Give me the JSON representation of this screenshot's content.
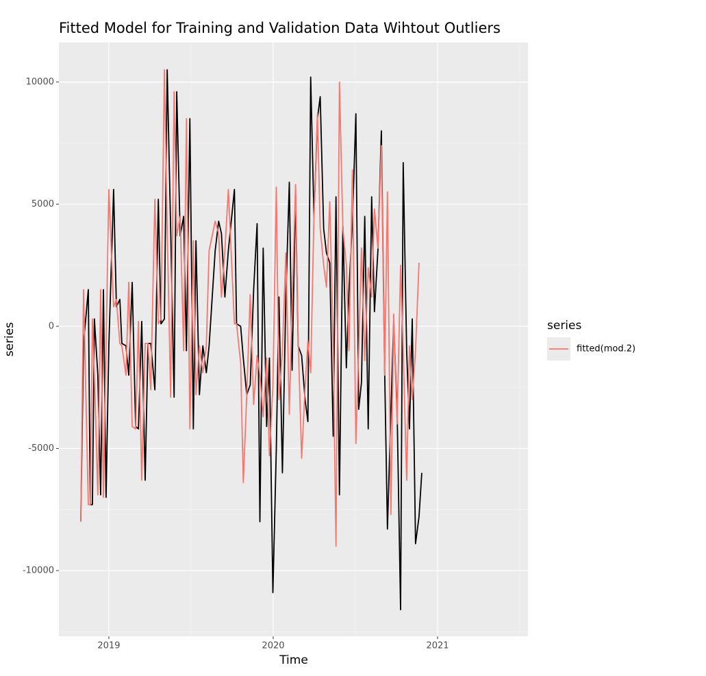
{
  "chart_data": {
    "type": "line",
    "title": "Fitted Model for Training and Validation Data Wihtout Outliers",
    "x_label": "Time",
    "y_label": "series",
    "legend_title": "series",
    "legend_position": "right",
    "grid": true,
    "x": [
      2018.829,
      2018.846,
      2018.875,
      2018.887,
      2018.9,
      2018.912,
      2018.933,
      2018.95,
      2018.967,
      2018.983,
      2019.0,
      2019.029,
      2019.046,
      2019.067,
      2019.079,
      2019.104,
      2019.121,
      2019.142,
      2019.163,
      2019.18,
      2019.2,
      2019.221,
      2019.238,
      2019.255,
      2019.28,
      2019.301,
      2019.317,
      2019.338,
      2019.355,
      2019.376,
      2019.397,
      2019.413,
      2019.434,
      2019.455,
      2019.472,
      2019.493,
      2019.514,
      2019.53,
      2019.551,
      2019.572,
      2019.593,
      2019.61,
      2019.647,
      2019.668,
      2019.685,
      2019.706,
      2019.727,
      2019.764,
      2019.777,
      2019.802,
      2019.818,
      2019.839,
      2019.86,
      2019.881,
      2019.902,
      2019.919,
      2019.939,
      2019.96,
      2019.977,
      2019.998,
      2020.019,
      2020.035,
      2020.056,
      2020.077,
      2020.098,
      2020.115,
      2020.136,
      2020.152,
      2020.173,
      2020.194,
      2020.211,
      2020.228,
      2020.248,
      2020.269,
      2020.286,
      2020.307,
      2020.324,
      2020.344,
      2020.365,
      2020.382,
      2020.403,
      2020.424,
      2020.445,
      2020.461,
      2020.482,
      2020.503,
      2020.52,
      2020.537,
      2020.557,
      2020.578,
      2020.599,
      2020.616,
      2020.637,
      2020.658,
      2020.678,
      2020.695,
      2020.716,
      2020.733,
      2020.754,
      2020.775,
      2020.791,
      2020.812,
      2020.829,
      2020.846,
      2020.866,
      2020.887,
      2020.904
    ],
    "series": [
      {
        "color": "#000000",
        "values": [
          -8000,
          -700,
          1500,
          -7300,
          -7300,
          300,
          -2000,
          -6900,
          1500,
          -7000,
          -800,
          5600,
          800,
          1100,
          -700,
          -800,
          -2000,
          1800,
          -4100,
          -4200,
          200,
          -6300,
          -700,
          -700,
          -2600,
          5200,
          100,
          300,
          10500,
          4000,
          -2900,
          9600,
          3700,
          4500,
          -1000,
          8500,
          -4200,
          3500,
          -2800,
          -800,
          -1900,
          -800,
          3100,
          4300,
          3800,
          1200,
          3100,
          5600,
          100,
          0,
          -1300,
          -2800,
          -2400,
          1500,
          4200,
          -8000,
          3200,
          -4100,
          -1300,
          -10900,
          -5000,
          1200,
          -6000,
          1200,
          5900,
          -1800,
          5500,
          -800,
          -1200,
          -3000,
          -3900,
          10200,
          4500,
          8500,
          9400,
          4000,
          3000,
          2600,
          -4500,
          5300,
          -6900,
          4100,
          -1700,
          1500,
          4300,
          8700,
          -3400,
          -2300,
          4500,
          -4200,
          5300,
          600,
          3100,
          8000,
          -1800,
          -8300,
          -3500,
          200,
          -3500,
          -11600,
          6700,
          -1000,
          -4200,
          300,
          -8900,
          -7800,
          -6000
        ]
      },
      {
        "name": "fitted(mod.2)",
        "color": "#f8766d",
        "values": [
          -8000,
          1500,
          -7300,
          -7300,
          300,
          -2000,
          -6900,
          1500,
          -7000,
          -800,
          5600,
          800,
          1100,
          -700,
          -800,
          -2000,
          1800,
          -4100,
          -4200,
          200,
          -6300,
          -700,
          -700,
          -2600,
          5200,
          100,
          300,
          10500,
          4000,
          -2900,
          9600,
          3700,
          4500,
          -1000,
          8500,
          -4200,
          3500,
          -2800,
          -800,
          -1900,
          -800,
          3100,
          4300,
          3800,
          1200,
          3100,
          5600,
          100,
          100,
          -1500,
          -6400,
          -2800,
          1300,
          -3200,
          -1200,
          -2000,
          -3700,
          -1300,
          -5300,
          -2500,
          5700,
          -3000,
          -1000,
          3000,
          -3600,
          1000,
          5800,
          -600,
          -5400,
          -2500,
          -600,
          -1900,
          4500,
          8700,
          4000,
          2500,
          1600,
          5100,
          -700,
          -9000,
          10000,
          4000,
          2500,
          -1000,
          6400,
          -4800,
          -1000,
          3200,
          -1400,
          2400,
          1200,
          4800,
          3200,
          7400,
          -2000,
          5500,
          -7700,
          500,
          -4000,
          2500,
          -1000,
          -6300,
          -800,
          -3000,
          -1000,
          2600,
          null
        ]
      }
    ],
    "xlim": [
      2018.696,
      2021.55
    ],
    "xticks": [
      2019,
      2020,
      2021
    ],
    "ylim": [
      -12690,
      11620
    ],
    "yticks": [
      -10000,
      -5000,
      0,
      5000,
      10000
    ]
  }
}
